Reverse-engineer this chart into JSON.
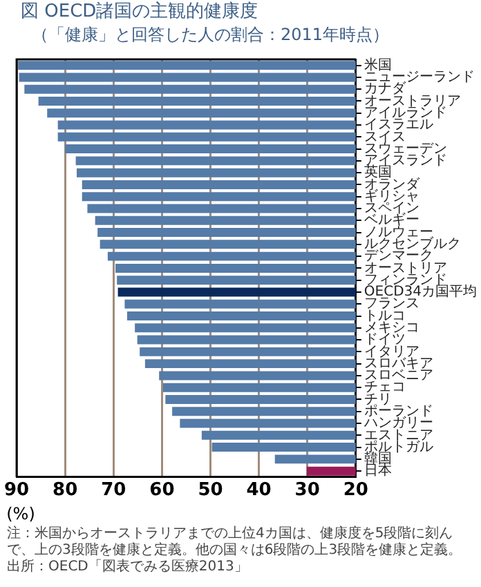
{
  "chart_data": {
    "type": "bar",
    "orientation": "horizontal",
    "title": "図 OECD諸国の主観的健康度",
    "subtitle": "（「健康」と回答した人の割合：2011年時点）",
    "xlabel": "(%)",
    "categories": [
      "米国",
      "ニュージーランド",
      "カナダ",
      "オーストラリア",
      "アイルランド",
      "イスラエル",
      "スイス",
      "スウェーデン",
      "アイスランド",
      "英国",
      "オランダ",
      "ギリシャ",
      "スペイン",
      "ベルギー",
      "ノルウェー",
      "ルクセンブルク",
      "デンマーク",
      "オーストリア",
      "フィンランド",
      "OECD34カ国平均",
      "フランス",
      "トルコ",
      "メキシコ",
      "ドイツ",
      "イタリア",
      "スロバキア",
      "スロベニア",
      "チェコ",
      "チリ",
      "ポーランド",
      "ハンガリー",
      "エストニア",
      "ポルトガル",
      "韓国",
      "日本"
    ],
    "values": [
      89.7,
      89.5,
      88.4,
      85.5,
      83.7,
      81.5,
      81.5,
      80.0,
      77.8,
      77.6,
      76.5,
      76.5,
      75.4,
      73.8,
      73.3,
      72.8,
      71.2,
      69.6,
      69.3,
      69.1,
      67.7,
      67.2,
      65.6,
      65.1,
      64.6,
      63.5,
      60.6,
      59.8,
      59.3,
      57.9,
      56.3,
      51.8,
      49.7,
      36.7,
      30.1
    ],
    "colors": [
      "#557ba8",
      "#557ba8",
      "#557ba8",
      "#557ba8",
      "#557ba8",
      "#557ba8",
      "#557ba8",
      "#557ba8",
      "#557ba8",
      "#557ba8",
      "#557ba8",
      "#557ba8",
      "#557ba8",
      "#557ba8",
      "#557ba8",
      "#557ba8",
      "#557ba8",
      "#557ba8",
      "#557ba8",
      "#0a2a5e",
      "#557ba8",
      "#557ba8",
      "#557ba8",
      "#557ba8",
      "#557ba8",
      "#557ba8",
      "#557ba8",
      "#557ba8",
      "#557ba8",
      "#557ba8",
      "#557ba8",
      "#557ba8",
      "#557ba8",
      "#557ba8",
      "#9b1b5a"
    ],
    "xlim": [
      90,
      20
    ],
    "xticks": [
      90,
      80,
      70,
      60,
      50,
      40,
      30,
      20
    ],
    "grid": "x",
    "legend": false,
    "annotations": [
      "注：米国からオーストラリアまでの上位4カ国は、健康度を5段階に刻んで、上の3段階を健康と定義。他の国々は6段階の上3段階を健康と定義。",
      "出所：OECD「図表でみる医療2013」"
    ]
  }
}
